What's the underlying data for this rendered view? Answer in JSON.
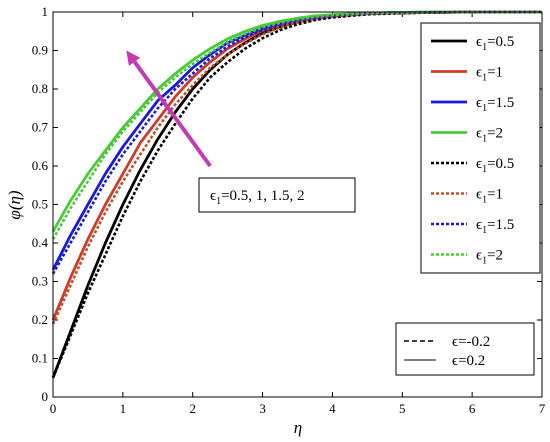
{
  "chart_data": {
    "type": "line",
    "xlabel": "η",
    "ylabel": "φ(η)",
    "xlim": [
      0,
      7
    ],
    "ylim": [
      0,
      1
    ],
    "x_ticks": [
      "0",
      "1",
      "2",
      "3",
      "4",
      "5",
      "6",
      "7"
    ],
    "y_ticks": [
      "0",
      "0.1",
      "0.2",
      "0.3",
      "0.4",
      "0.5",
      "0.6",
      "0.7",
      "0.8",
      "0.9",
      "1"
    ],
    "grid": false,
    "legend_position": "top-right",
    "x": [
      0,
      0.25,
      0.5,
      0.75,
      1.0,
      1.25,
      1.5,
      1.75,
      2.0,
      2.25,
      2.5,
      2.75,
      3.0,
      3.25,
      3.5,
      3.75,
      4.0,
      4.5,
      5.0,
      5.5,
      6.0,
      6.5,
      7.0
    ],
    "series": [
      {
        "name": "ϵ1=0.5",
        "color": "#000000",
        "style": "solid",
        "values": [
          0.05,
          0.17,
          0.29,
          0.4,
          0.5,
          0.59,
          0.67,
          0.74,
          0.8,
          0.85,
          0.89,
          0.92,
          0.945,
          0.962,
          0.975,
          0.984,
          0.99,
          0.996,
          0.998,
          0.999,
          1.0,
          1.0,
          1.0
        ]
      },
      {
        "name": "ϵ1=1",
        "color": "#d03a2a",
        "style": "solid",
        "values": [
          0.2,
          0.31,
          0.41,
          0.5,
          0.58,
          0.66,
          0.72,
          0.78,
          0.83,
          0.87,
          0.905,
          0.93,
          0.952,
          0.967,
          0.978,
          0.986,
          0.991,
          0.996,
          0.998,
          0.999,
          1.0,
          1.0,
          1.0
        ]
      },
      {
        "name": "ϵ1=1.5",
        "color": "#1a1adb",
        "style": "solid",
        "values": [
          0.33,
          0.42,
          0.5,
          0.58,
          0.65,
          0.71,
          0.77,
          0.81,
          0.855,
          0.89,
          0.92,
          0.94,
          0.958,
          0.971,
          0.981,
          0.988,
          0.992,
          0.997,
          0.999,
          1.0,
          1.0,
          1.0,
          1.0
        ]
      },
      {
        "name": "ϵ1=2",
        "color": "#4cc93a",
        "style": "solid",
        "values": [
          0.43,
          0.51,
          0.58,
          0.64,
          0.7,
          0.75,
          0.8,
          0.84,
          0.875,
          0.905,
          0.93,
          0.95,
          0.965,
          0.976,
          0.984,
          0.99,
          0.993,
          0.997,
          0.999,
          1.0,
          1.0,
          1.0,
          1.0
        ]
      },
      {
        "name": "ϵ1=0.5",
        "color": "#000000",
        "style": "dashed",
        "values": [
          0.05,
          0.16,
          0.27,
          0.37,
          0.47,
          0.56,
          0.64,
          0.71,
          0.775,
          0.83,
          0.87,
          0.905,
          0.932,
          0.953,
          0.968,
          0.979,
          0.986,
          0.994,
          0.997,
          0.999,
          1.0,
          1.0,
          1.0
        ]
      },
      {
        "name": "ϵ1=1",
        "color": "#c0502a",
        "style": "dashed",
        "values": [
          0.19,
          0.29,
          0.39,
          0.48,
          0.56,
          0.63,
          0.7,
          0.76,
          0.81,
          0.855,
          0.89,
          0.918,
          0.942,
          0.96,
          0.973,
          0.982,
          0.988,
          0.995,
          0.998,
          0.999,
          1.0,
          1.0,
          1.0
        ]
      },
      {
        "name": "ϵ1=1.5",
        "color": "#1a1adb",
        "style": "dashed",
        "values": [
          0.32,
          0.4,
          0.48,
          0.56,
          0.63,
          0.69,
          0.75,
          0.8,
          0.84,
          0.88,
          0.91,
          0.935,
          0.953,
          0.967,
          0.978,
          0.985,
          0.99,
          0.996,
          0.998,
          0.999,
          1.0,
          1.0,
          1.0
        ]
      },
      {
        "name": "ϵ1=2",
        "color": "#4cc93a",
        "style": "dashed",
        "values": [
          0.41,
          0.49,
          0.56,
          0.63,
          0.69,
          0.74,
          0.79,
          0.83,
          0.865,
          0.895,
          0.922,
          0.943,
          0.96,
          0.972,
          0.981,
          0.988,
          0.992,
          0.997,
          0.999,
          1.0,
          1.0,
          1.0,
          1.0
        ]
      }
    ],
    "annotation": {
      "text": "ϵ1=0.5, 1, 1.5, 2",
      "arrow_color": "#c23bb0",
      "arrow_from": [
        2.25,
        0.6
      ],
      "arrow_to": [
        1.05,
        0.9
      ]
    },
    "style_legend": [
      {
        "label": "ϵ=-0.2",
        "style": "dashed"
      },
      {
        "label": "ϵ=0.2",
        "style": "solid"
      }
    ]
  }
}
